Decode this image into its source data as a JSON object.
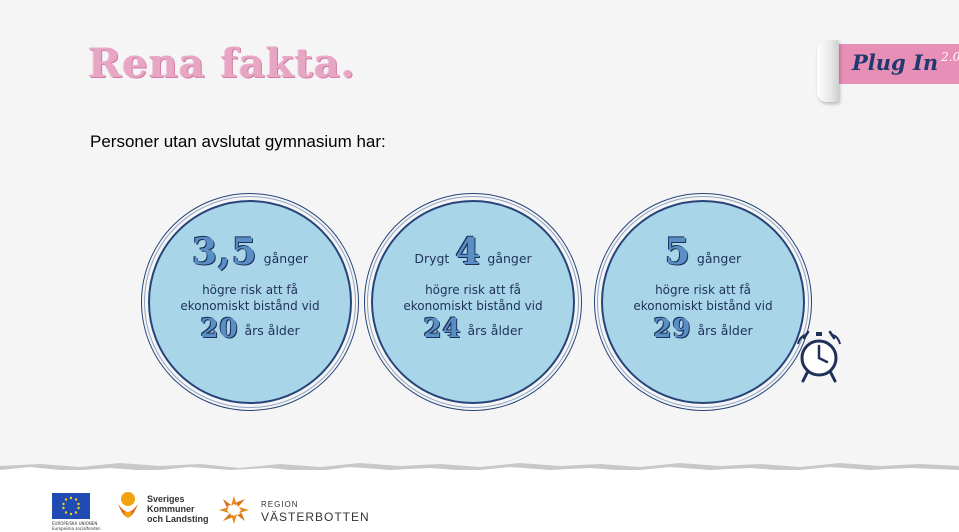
{
  "header": {
    "title": "Rena fakta.",
    "brand": "Plug In",
    "brand_version": "2.0"
  },
  "subtitle": "Personer utan avslutat gymnasium har:",
  "stats": [
    {
      "prefix": "",
      "number": "3,5",
      "unit": "gånger",
      "description_line1": "högre risk att få",
      "description_line2": "ekonomiskt bistånd vid",
      "age": "20",
      "age_label": "års ålder"
    },
    {
      "prefix": "Drygt",
      "number": "4",
      "unit": "gånger",
      "description_line1": "högre risk att få",
      "description_line2": "ekonomiskt bistånd vid",
      "age": "24",
      "age_label": "års ålder"
    },
    {
      "prefix": "",
      "number": "5",
      "unit": "gånger",
      "description_line1": "högre risk att få",
      "description_line2": "ekonomiskt bistånd vid",
      "age": "29",
      "age_label": "års ålder"
    }
  ],
  "icons": {
    "clock": "alarm-clock-icon"
  },
  "footer": {
    "eu_text_line1": "EUROPEISKA UNIONEN",
    "eu_text_line2": "Europeiska socialfonden",
    "skl_line1": "Sveriges",
    "skl_line2": "Kommuner",
    "skl_line3": "och Landsting",
    "region_small": "REGION",
    "region_big": "VÄSTERBOTTEN"
  },
  "colors": {
    "title_pink": "#e7a6c4",
    "banner_pink": "#e78fb6",
    "circle_fill": "#a9d5e9",
    "navy": "#1f3158",
    "number_blue": "#5a8fc6"
  }
}
